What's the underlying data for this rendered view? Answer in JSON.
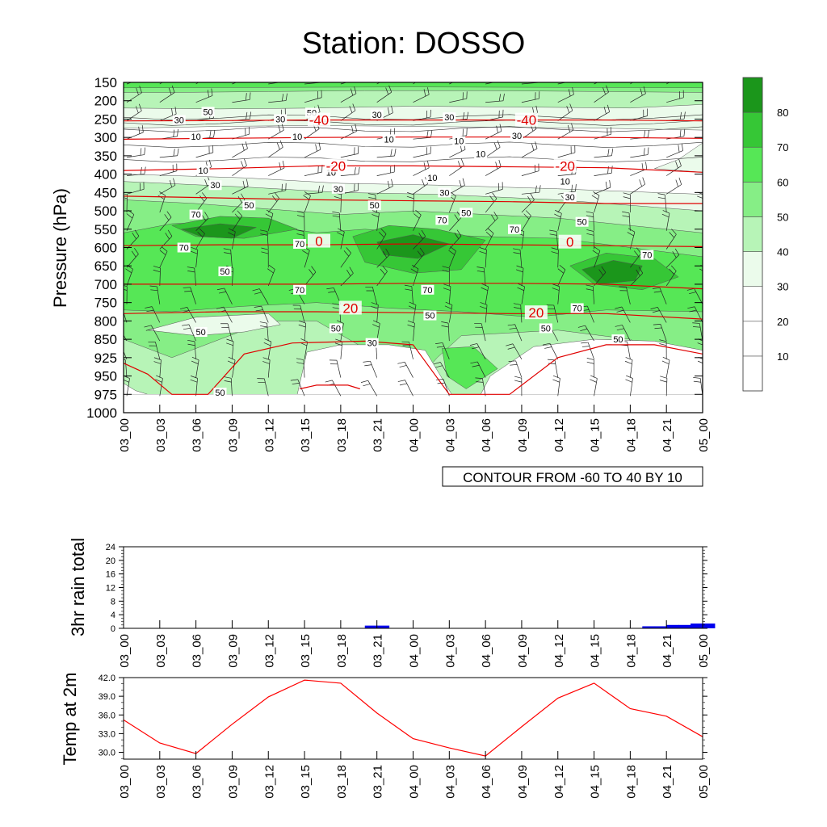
{
  "page": {
    "title": "Station: DOSSO"
  },
  "chart_data": [
    {
      "id": "cross_section",
      "type": "heatmap",
      "title": "Station: DOSSO",
      "ylabel": "Pressure (hPa)",
      "xlabel": "",
      "y_ticks": [
        "150",
        "200",
        "250",
        "300",
        "350",
        "400",
        "450",
        "500",
        "550",
        "600",
        "650",
        "700",
        "750",
        "800",
        "850",
        "925",
        "950",
        "975",
        "1000"
      ],
      "x_ticks": [
        "03_00",
        "03_03",
        "03_06",
        "03_09",
        "03_12",
        "03_15",
        "03_18",
        "03_21",
        "04_00",
        "04_03",
        "04_06",
        "04_09",
        "04_12",
        "04_15",
        "04_18",
        "04_21",
        "05_00"
      ],
      "info_label": "CONTOUR FROM -60 TO 40 BY 10",
      "colorbar": {
        "levels": [
          "10",
          "20",
          "30",
          "40",
          "50",
          "60",
          "70",
          "80"
        ],
        "colors": [
          "#ffffff",
          "#ffffff",
          "#ffffff",
          "#ebfbeb",
          "#b7f4b7",
          "#86ee86",
          "#56e756",
          "#36c736",
          "#1b961b"
        ]
      },
      "humidity_labels": [
        {
          "text": "50",
          "t": 3.5,
          "p": 1.6
        },
        {
          "text": "50",
          "t": 7.8,
          "p": 1.65
        },
        {
          "text": "30",
          "t": 2.3,
          "p": 2.05
        },
        {
          "text": "30",
          "t": 6.5,
          "p": 2.0
        },
        {
          "text": "30",
          "t": 10.5,
          "p": 1.75
        },
        {
          "text": "30",
          "t": 13.5,
          "p": 1.9
        },
        {
          "text": "30",
          "t": 16.3,
          "p": 2.9
        },
        {
          "text": "10",
          "t": 3.0,
          "p": 2.95
        },
        {
          "text": "10",
          "t": 7.2,
          "p": 2.95
        },
        {
          "text": "10",
          "t": 11.0,
          "p": 3.1
        },
        {
          "text": "10",
          "t": 13.9,
          "p": 3.2
        },
        {
          "text": "10",
          "t": 14.8,
          "p": 3.9
        },
        {
          "text": "10",
          "t": 3.3,
          "p": 4.8
        },
        {
          "text": "10",
          "t": 8.6,
          "p": 4.9
        },
        {
          "text": "10",
          "t": 12.8,
          "p": 5.2
        },
        {
          "text": "10",
          "t": 18.3,
          "p": 5.4
        },
        {
          "text": "30",
          "t": 3.8,
          "p": 5.6
        },
        {
          "text": "30",
          "t": 8.9,
          "p": 5.8
        },
        {
          "text": "30",
          "t": 13.3,
          "p": 6.0
        },
        {
          "text": "30",
          "t": 18.5,
          "p": 6.25
        },
        {
          "text": "50",
          "t": 5.2,
          "p": 6.7
        },
        {
          "text": "50",
          "t": 10.4,
          "p": 6.7
        },
        {
          "text": "50",
          "t": 14.2,
          "p": 7.1
        },
        {
          "text": "50",
          "t": 19.0,
          "p": 7.6
        },
        {
          "text": "70",
          "t": 3.0,
          "p": 7.2
        },
        {
          "text": "70",
          "t": 13.2,
          "p": 7.5
        },
        {
          "text": "70",
          "t": 16.2,
          "p": 8.0
        },
        {
          "text": "70",
          "t": 2.5,
          "p": 9.0
        },
        {
          "text": "70",
          "t": 7.3,
          "p": 8.8
        },
        {
          "text": "70",
          "t": 21.7,
          "p": 9.4
        },
        {
          "text": "50",
          "t": 4.2,
          "p": 10.3
        },
        {
          "text": "70",
          "t": 7.3,
          "p": 11.3
        },
        {
          "text": "70",
          "t": 12.6,
          "p": 11.3
        },
        {
          "text": "70",
          "t": 18.8,
          "p": 12.3
        },
        {
          "text": "50",
          "t": 12.7,
          "p": 12.7
        },
        {
          "text": "50",
          "t": 3.2,
          "p": 13.6
        },
        {
          "text": "50",
          "t": 8.8,
          "p": 13.4
        },
        {
          "text": "50",
          "t": 17.5,
          "p": 13.4
        },
        {
          "text": "50",
          "t": 20.5,
          "p": 14.0
        },
        {
          "text": "30",
          "t": 10.3,
          "p": 14.2
        },
        {
          "text": "50",
          "t": 4.0,
          "p": 16.9
        }
      ],
      "temperature_contours": [
        {
          "value": -40,
          "points": [
            [
              0,
              2.1
            ],
            [
              4,
              2.08
            ],
            [
              8,
              2.05
            ],
            [
              12,
              2.05
            ],
            [
              16,
              2.05
            ],
            [
              20,
              2.05
            ],
            [
              24,
              2.1
            ]
          ]
        },
        {
          "value": -30,
          "points": [
            [
              0,
              3.1
            ],
            [
              4,
              3.05
            ],
            [
              8,
              3.0
            ],
            [
              12,
              2.98
            ],
            [
              16,
              2.98
            ],
            [
              20,
              3.0
            ],
            [
              24,
              3.05
            ]
          ]
        },
        {
          "value": -20,
          "points": [
            [
              0,
              4.8
            ],
            [
              4,
              4.7
            ],
            [
              8,
              4.55
            ],
            [
              12,
              4.55
            ],
            [
              16,
              4.6
            ],
            [
              20,
              4.65
            ],
            [
              24,
              4.9
            ]
          ]
        },
        {
          "value": -10,
          "points": [
            [
              0,
              6.2
            ],
            [
              4,
              6.3
            ],
            [
              8,
              6.4
            ],
            [
              12,
              6.45
            ],
            [
              16,
              6.5
            ],
            [
              20,
              6.6
            ],
            [
              24,
              6.6
            ]
          ]
        },
        {
          "value": 0,
          "points": [
            [
              0,
              8.9
            ],
            [
              4,
              8.85
            ],
            [
              8,
              8.85
            ],
            [
              12,
              8.8
            ],
            [
              16,
              8.85
            ],
            [
              20,
              8.9
            ],
            [
              24,
              8.95
            ]
          ]
        },
        {
          "value": 10,
          "points": [
            [
              0,
              11.0
            ],
            [
              4,
              11.0
            ],
            [
              8,
              11.0
            ],
            [
              12,
              10.95
            ],
            [
              16,
              10.95
            ],
            [
              20,
              11.0
            ],
            [
              24,
              11.25
            ]
          ]
        },
        {
          "value": 20,
          "points": [
            [
              0,
              12.6
            ],
            [
              4,
              12.5
            ],
            [
              8,
              12.5
            ],
            [
              12,
              12.55
            ],
            [
              16,
              12.6
            ],
            [
              20,
              12.6
            ],
            [
              24,
              12.9
            ]
          ]
        },
        {
          "value": 30,
          "points": [
            [
              0,
              15.3
            ],
            [
              1,
              15.9
            ],
            [
              2,
              17.0
            ],
            [
              3.5,
              17.0
            ],
            [
              5,
              14.8
            ],
            [
              7,
              14.2
            ],
            [
              10,
              14.1
            ],
            [
              12,
              14.3
            ],
            [
              13.5,
              17.0
            ],
            [
              16,
              17.0
            ],
            [
              18,
              15.0
            ],
            [
              20,
              14.3
            ],
            [
              22,
              14.3
            ],
            [
              24,
              14.8
            ]
          ]
        },
        {
          "value": 40,
          "points": [
            [
              7.3,
              16.7
            ],
            [
              8,
              16.5
            ],
            [
              9.3,
              16.5
            ],
            [
              9.8,
              16.7
            ]
          ]
        }
      ],
      "temperature_labels": [
        {
          "text": "-40",
          "t": 8.1,
          "p": 2.05
        },
        {
          "text": "-40",
          "t": 16.7,
          "p": 2.05
        },
        {
          "text": "-20",
          "t": 8.8,
          "p": 4.55
        },
        {
          "text": "-20",
          "t": 18.3,
          "p": 4.55
        },
        {
          "text": "0",
          "t": 8.1,
          "p": 8.65
        },
        {
          "text": "0",
          "t": 18.5,
          "p": 8.7
        },
        {
          "text": "20",
          "t": 9.4,
          "p": 12.3
        },
        {
          "text": "20",
          "t": 17.1,
          "p": 12.55
        }
      ]
    },
    {
      "id": "rain",
      "type": "bar",
      "ylabel": "3hr rain total",
      "ylim": [
        0,
        24
      ],
      "y_ticks": [
        "0",
        "4",
        "8",
        "12",
        "16",
        "20",
        "24"
      ],
      "x_ticks": [
        "03_00",
        "03_03",
        "03_06",
        "03_09",
        "03_12",
        "03_15",
        "03_18",
        "03_21",
        "04_00",
        "04_03",
        "04_06",
        "04_09",
        "04_12",
        "04_15",
        "04_18",
        "04_21",
        "05_00"
      ],
      "values": [
        0,
        0,
        0,
        0,
        0,
        0,
        0,
        0,
        0,
        0,
        0,
        0,
        0,
        0,
        0,
        0,
        0,
        0,
        0,
        0,
        0.8,
        0.8,
        0,
        0,
        0,
        0,
        0,
        0,
        0,
        0,
        0,
        0,
        0,
        0,
        0,
        0,
        0,
        0,
        0,
        0,
        0,
        0,
        0,
        0.6,
        0.6,
        1.0,
        1.0,
        1.4,
        1.4
      ],
      "color": "#0000ee"
    },
    {
      "id": "temp2m",
      "type": "line",
      "ylabel": "Temp at 2m",
      "ylim": [
        28.9,
        42.0
      ],
      "y_ticks": [
        "30.0",
        "33.0",
        "36.0",
        "39.0",
        "42.0"
      ],
      "x_ticks": [
        "03_00",
        "03_03",
        "03_06",
        "03_09",
        "03_12",
        "03_15",
        "03_18",
        "03_21",
        "04_00",
        "04_03",
        "04_06",
        "04_09",
        "04_12",
        "04_15",
        "04_18",
        "04_21",
        "05_00"
      ],
      "values": [
        35.2,
        31.5,
        29.8,
        34.5,
        38.9,
        41.6,
        41.1,
        36.3,
        32.2,
        30.7,
        29.4,
        34.1,
        38.7,
        41.1,
        37.0,
        35.8,
        32.5
      ],
      "color": "#ff0000"
    }
  ]
}
